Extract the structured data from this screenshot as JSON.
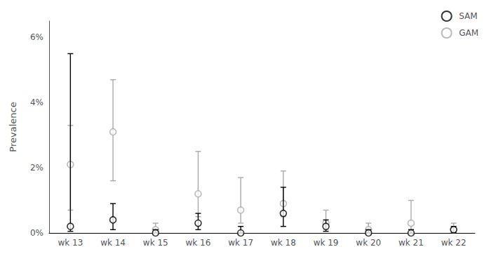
{
  "chart_data": {
    "type": "scatter",
    "ylabel": "Prevalence",
    "categories": [
      "wk 13",
      "wk 14",
      "wk 15",
      "wk 16",
      "wk 17",
      "wk 18",
      "wk 19",
      "wk 20",
      "wk 21",
      "wk 22"
    ],
    "series": [
      {
        "name": "SAM",
        "color": "#000000",
        "marker": "circle",
        "values": [
          0.002,
          0.004,
          0.0,
          0.003,
          0.0,
          0.006,
          0.002,
          0.0,
          0.0,
          0.001
        ],
        "ci_lower": [
          0.0005,
          0.001,
          0.0,
          0.001,
          0.0,
          0.002,
          0.0005,
          0.0,
          0.0,
          0.0
        ],
        "ci_upper": [
          0.055,
          0.009,
          0.001,
          0.006,
          0.002,
          0.014,
          0.004,
          0.001,
          0.001,
          0.002
        ]
      },
      {
        "name": "GAM",
        "color": "#aaaaaa",
        "marker": "circle",
        "values": [
          0.021,
          0.031,
          0.001,
          0.012,
          0.007,
          0.009,
          0.003,
          0.001,
          0.003,
          0.001
        ],
        "ci_lower": [
          0.007,
          0.016,
          0.0,
          0.005,
          0.003,
          0.005,
          0.001,
          0.0,
          0.001,
          0.0
        ],
        "ci_upper": [
          0.033,
          0.047,
          0.003,
          0.025,
          0.017,
          0.019,
          0.007,
          0.003,
          0.01,
          0.003
        ]
      }
    ],
    "ylim": [
      0,
      0.065
    ],
    "yticks": [
      {
        "value": 0.0,
        "label": "0%"
      },
      {
        "value": 0.02,
        "label": "2%"
      },
      {
        "value": 0.04,
        "label": "4%"
      },
      {
        "value": 0.06,
        "label": "6%"
      }
    ],
    "grid": false,
    "legend": "upper right"
  }
}
